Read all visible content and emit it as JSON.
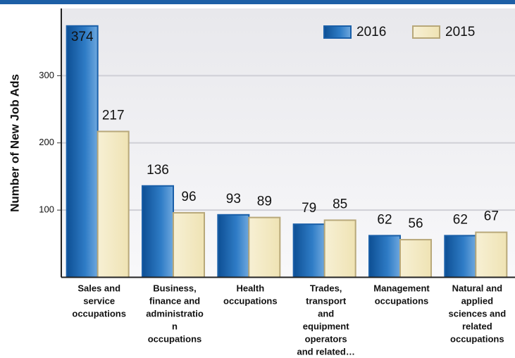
{
  "chart_data": {
    "type": "bar",
    "y_label": "Number of New Job Ads",
    "categories": [
      [
        "Sales and",
        "service",
        "occupations"
      ],
      [
        "Business,",
        "finance and",
        "administratio",
        "n",
        "occupations"
      ],
      [
        "Health",
        "occupations"
      ],
      [
        "Trades,",
        "transport",
        "and",
        "equipment",
        "operators",
        "and  related…"
      ],
      [
        "Management",
        "occupations"
      ],
      [
        "Natural and",
        "applied",
        "sciences and",
        "related",
        "occupations"
      ]
    ],
    "series": [
      {
        "name": "2016",
        "color": "#1f6bb5",
        "values": [
          374,
          136,
          93,
          79,
          62,
          62
        ]
      },
      {
        "name": "2015",
        "color": "#f4ebc7",
        "values": [
          217,
          96,
          89,
          85,
          56,
          67
        ]
      }
    ],
    "ylim": [
      0,
      400
    ],
    "yticks": [
      100,
      200,
      300
    ],
    "grid": true,
    "legend": "upper right"
  }
}
